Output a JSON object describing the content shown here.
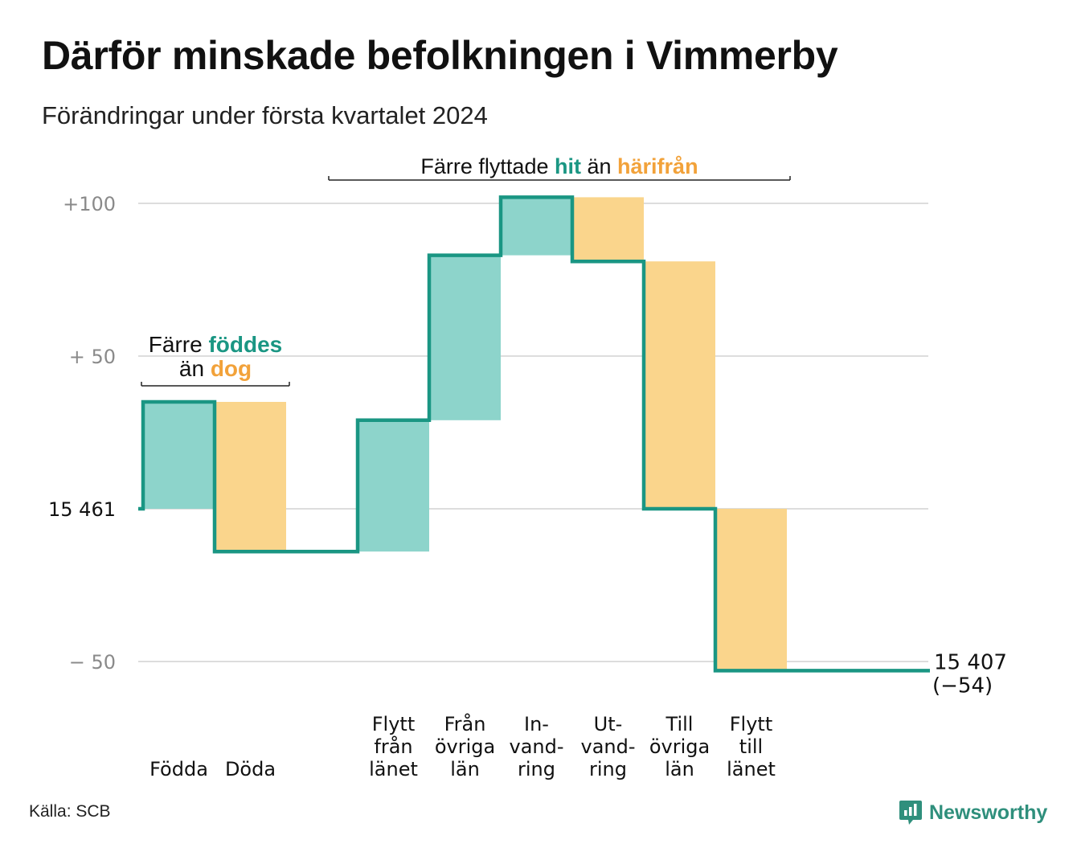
{
  "title": "Därför minskade befolkningen i Vimmerby",
  "subtitle": "Förändringar under första kvartalet 2024",
  "source": "Källa: SCB",
  "brand": {
    "name": "Newsworthy",
    "icon": "bar-chart-speech-bubble-icon"
  },
  "colors": {
    "line": "#1a9683",
    "increase_fill": "#8dd4cb",
    "decrease_fill": "#fad58c",
    "increase_text": "#1a9683",
    "decrease_text": "#f2a23a",
    "grid": "#dddddd",
    "tick": "#8a8a8a"
  },
  "chart_data": {
    "type": "waterfall",
    "start": {
      "label": "15  461",
      "value": 15461
    },
    "end": {
      "label": "15 407",
      "change_label": "(−54)",
      "value": 15407
    },
    "y_ticks": [
      {
        "value": 100,
        "label": "+100"
      },
      {
        "value": 50,
        "label": "+  50"
      },
      {
        "value": -50,
        "label": "−  50"
      }
    ],
    "ylim": [
      -60,
      105
    ],
    "steps": [
      {
        "label": [
          "Födda"
        ],
        "change": 35,
        "kind": "increase"
      },
      {
        "label": [
          "Döda"
        ],
        "change": -49,
        "kind": "decrease"
      },
      {
        "label": [],
        "change": 0,
        "kind": "gap"
      },
      {
        "label": [
          "Flytt",
          "från",
          "länet"
        ],
        "change": 43,
        "kind": "increase"
      },
      {
        "label": [
          "Från",
          "övriga",
          "län"
        ],
        "change": 54,
        "kind": "increase"
      },
      {
        "label": [
          "In-",
          "vand-",
          "ring"
        ],
        "change": 19,
        "kind": "increase"
      },
      {
        "label": [
          "Ut-",
          "vand-",
          "ring"
        ],
        "change": -21,
        "kind": "decrease"
      },
      {
        "label": [
          "Till",
          "övriga",
          "län"
        ],
        "change": -81,
        "kind": "decrease"
      },
      {
        "label": [
          "Flytt",
          "till",
          "länet"
        ],
        "change": -53,
        "kind": "decrease"
      },
      {
        "label": [],
        "change": 0,
        "kind": "gap"
      },
      {
        "label": [],
        "change": 0,
        "kind": "gap"
      }
    ],
    "annotations": [
      {
        "parts": [
          {
            "text": "Färre ",
            "kind": "plain"
          },
          {
            "text": "föddes",
            "kind": "increase"
          }
        ],
        "parts2": [
          {
            "text": "än ",
            "kind": "plain"
          },
          {
            "text": "dog",
            "kind": "decrease"
          }
        ],
        "span_steps": [
          0,
          1
        ]
      },
      {
        "parts": [
          {
            "text": "Färre flyttade ",
            "kind": "plain"
          },
          {
            "text": "hit",
            "kind": "increase"
          },
          {
            "text": " än ",
            "kind": "plain"
          },
          {
            "text": "härifrån",
            "kind": "decrease"
          }
        ],
        "span_steps": [
          3,
          8
        ]
      }
    ]
  }
}
